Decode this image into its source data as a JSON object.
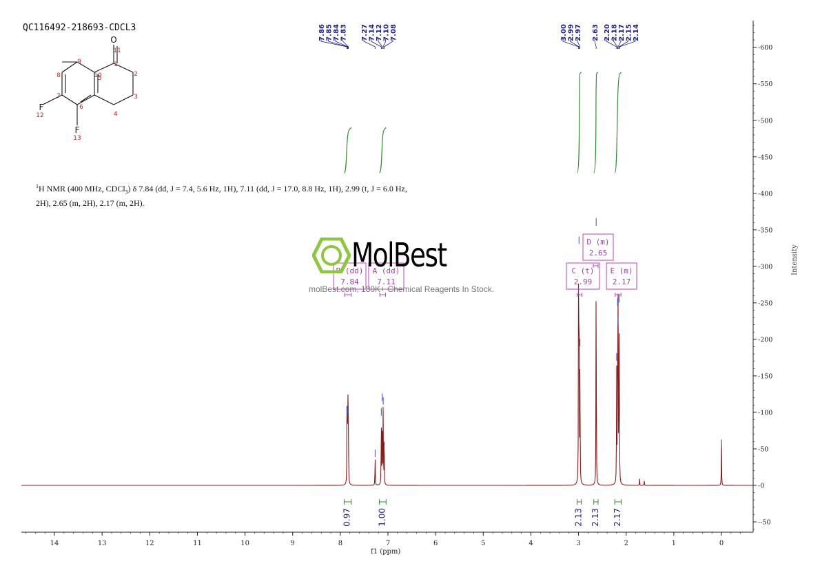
{
  "sample_title": "QC116492-218693-CDCL3",
  "nmr_description": {
    "nucleus_mass": "1",
    "text_a": "H NMR (400 MHz, CDCl",
    "sub": "3",
    "text_b": ") δ 7.84 (dd, J = 7.4, 5.6 Hz, 1H), 7.11 (dd, J = 17.0, 8.8 Hz, 1H), 2.99 (t, J = 6.0 Hz, 2H), 2.65 (m, 2H), 2.17 (m, 2H)."
  },
  "watermark": {
    "brand": "MolBest",
    "tagline": "molBest.com, 180K+ Chemical Reagents In Stock."
  },
  "structure": {
    "atoms": [
      {
        "label": "O",
        "kind": "heteroatom"
      },
      {
        "label": "F",
        "kind": "heteroatom"
      },
      {
        "label": "F",
        "kind": "heteroatom"
      }
    ],
    "numbers": [
      "11",
      "1",
      "2",
      "3",
      "4",
      "5",
      "10",
      "9",
      "8",
      "7",
      "6",
      "12",
      "13"
    ]
  },
  "colors": {
    "spectrum": "#8b1a1a",
    "peak_label": "#1a1a8c",
    "integral": "#2e8b2e",
    "multiplet_box": "#c040c0",
    "logo_green": "#8dc63f"
  },
  "chart_data": {
    "type": "line",
    "xlabel": "f1 (ppm)",
    "ylabel": "Intensity",
    "xlim": [
      14.7,
      -0.6
    ],
    "ylim": [
      -65,
      635
    ],
    "x_ticks": [
      14,
      13,
      12,
      11,
      10,
      9,
      8,
      7,
      6,
      5,
      4,
      3,
      2,
      1,
      0
    ],
    "y_ticks": [
      -50,
      0,
      50,
      100,
      150,
      200,
      250,
      300,
      350,
      400,
      450,
      500,
      550,
      600
    ],
    "peak_labels": {
      "group1": [
        "7.86",
        "7.85",
        "7.84",
        "7.83"
      ],
      "group2": [
        "7.27",
        "7.14",
        "7.12",
        "7.10",
        "7.08"
      ],
      "group3": [
        "3.00",
        "2.99",
        "2.97"
      ],
      "group4": [
        "2.63"
      ],
      "group5": [
        "2.20",
        "2.18",
        "2.17",
        "2.15",
        "2.14"
      ]
    },
    "peaks": [
      {
        "ppm": 7.86,
        "height": 100
      },
      {
        "ppm": 7.85,
        "height": 108
      },
      {
        "ppm": 7.84,
        "height": 105
      },
      {
        "ppm": 7.83,
        "height": 95
      },
      {
        "ppm": 7.27,
        "height": 48
      },
      {
        "ppm": 7.14,
        "height": 105
      },
      {
        "ppm": 7.12,
        "height": 125
      },
      {
        "ppm": 7.1,
        "height": 120
      },
      {
        "ppm": 7.08,
        "height": 55
      },
      {
        "ppm": 3.0,
        "height": 270
      },
      {
        "ppm": 2.99,
        "height": 340
      },
      {
        "ppm": 2.97,
        "height": 200
      },
      {
        "ppm": 2.63,
        "height": 365
      },
      {
        "ppm": 2.2,
        "height": 180
      },
      {
        "ppm": 2.18,
        "height": 255
      },
      {
        "ppm": 2.17,
        "height": 230
      },
      {
        "ppm": 2.15,
        "height": 260
      },
      {
        "ppm": 2.14,
        "height": 70
      },
      {
        "ppm": 1.72,
        "height": 10
      },
      {
        "ppm": 1.62,
        "height": 6
      },
      {
        "ppm": 0.0,
        "height": 62
      }
    ],
    "integrals": [
      {
        "from": 7.92,
        "to": 7.77,
        "value": "0.97",
        "curve_top": 490,
        "curve_bottom": 428
      },
      {
        "from": 7.18,
        "to": 7.04,
        "value": "1.00",
        "curve_top": 490,
        "curve_bottom": 428
      },
      {
        "from": 3.03,
        "to": 2.94,
        "value": "2.13",
        "curve_top": 566,
        "curve_bottom": 428
      },
      {
        "from": 2.68,
        "to": 2.59,
        "value": "2.13",
        "curve_top": 566,
        "curve_bottom": 428
      },
      {
        "from": 2.24,
        "to": 2.1,
        "value": "2.17",
        "curve_top": 566,
        "curve_bottom": 428
      }
    ],
    "multiplets": [
      {
        "label": "B",
        "mult": "(dd)",
        "shift": "7.84"
      },
      {
        "label": "A",
        "mult": "(dd)",
        "shift": "7.11"
      },
      {
        "label": "C",
        "mult": "(t)",
        "shift": "2.99"
      },
      {
        "label": "D",
        "mult": "(m)",
        "shift": "2.65"
      },
      {
        "label": "E",
        "mult": "(m)",
        "shift": "2.17"
      }
    ]
  }
}
